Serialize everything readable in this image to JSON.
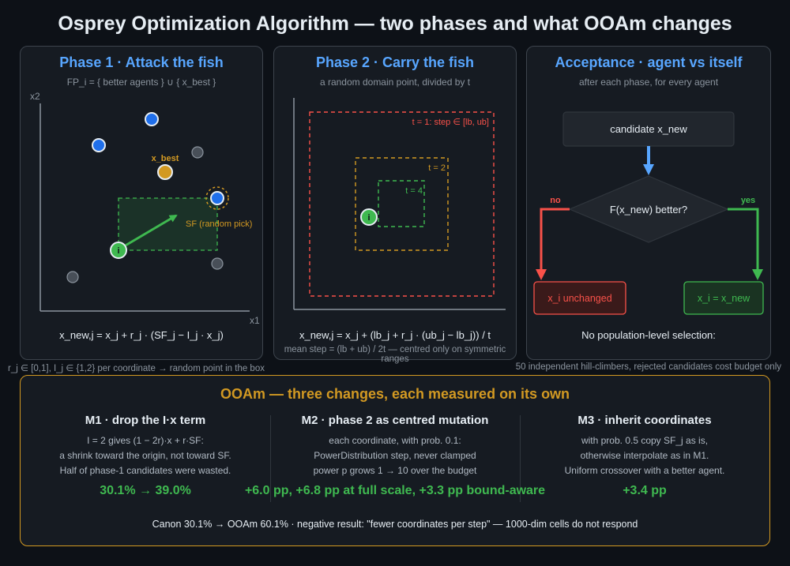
{
  "title": "Osprey Optimization Algorithm — two phases and what OOAm changes",
  "phase1": {
    "title": "Phase 1 · Attack the fish",
    "subtitle": "FP_i = { better agents } ∪ { x_best }",
    "axis_x": "x1",
    "axis_y": "x2",
    "best_label": "x_best",
    "agent_label": "i",
    "sf_label": "SF (random pick)",
    "formula": "x_new,j = x_j + r_j · (SF_j − I_j · x_j)",
    "note": "r_j ∈ [0,1], I_j ∈ {1,2} per coordinate → random point in the box"
  },
  "phase2": {
    "title": "Phase 2 · Carry the fish",
    "subtitle": "a random domain point, divided by t",
    "box_labels": [
      "t = 1: step ∈ [lb, ub]",
      "t = 2",
      "t = 4"
    ],
    "agent_label": "i",
    "formula": "x_new,j = x_j + (lb_j + r_j · (ub_j − lb_j)) / t",
    "note": "mean step = (lb + ub) / 2t — centred only on symmetric ranges"
  },
  "acceptance": {
    "title": "Acceptance · agent vs itself",
    "subtitle": "after each phase, for every agent",
    "candidate": "candidate x_new",
    "decision": "F(x_new) better?",
    "no_label": "no",
    "yes_label": "yes",
    "no_box": "x_i unchanged",
    "yes_box": "x_i = x_new",
    "bottom": "No population-level selection:",
    "note": "50 independent hill-climbers, rejected candidates cost budget only"
  },
  "ooam": {
    "title": "OOAm — three changes, each measured on its own",
    "m1": {
      "heading": "M1 · drop the I·x term",
      "lines": [
        "I = 2 gives (1 − 2r)·x + r·SF:",
        "a shrink toward the origin, not toward SF.",
        "Half of phase-1 candidates were wasted."
      ],
      "result": "30.1% → 39.0%"
    },
    "m2": {
      "heading": "M2 · phase 2 as centred mutation",
      "lines": [
        "each coordinate, with prob. 0.1:",
        "PowerDistribution step, never clamped",
        "power p grows 1 → 10 over the budget"
      ],
      "result": "+6.0 pp, +6.8 pp at full scale, +3.3 pp bound-aware"
    },
    "m3": {
      "heading": "M3 · inherit coordinates",
      "lines": [
        "with prob. 0.5 copy SF_j as is,",
        "otherwise interpolate as in M1.",
        "Uniform crossover with a better agent."
      ],
      "result": "+3.4 pp"
    },
    "footer": "Canon 30.1% → OOAm 60.1% · negative result: \"fewer coordinates per step\" — 1000-dim cells do not respond"
  },
  "colors": {
    "background": "#0d1117",
    "panel": "#161b22",
    "blue": "#58a6ff",
    "agent_blue": "#1f6feb",
    "gold": "#d29922",
    "green": "#3fb950",
    "red": "#f85149",
    "gray": "#484f58"
  }
}
